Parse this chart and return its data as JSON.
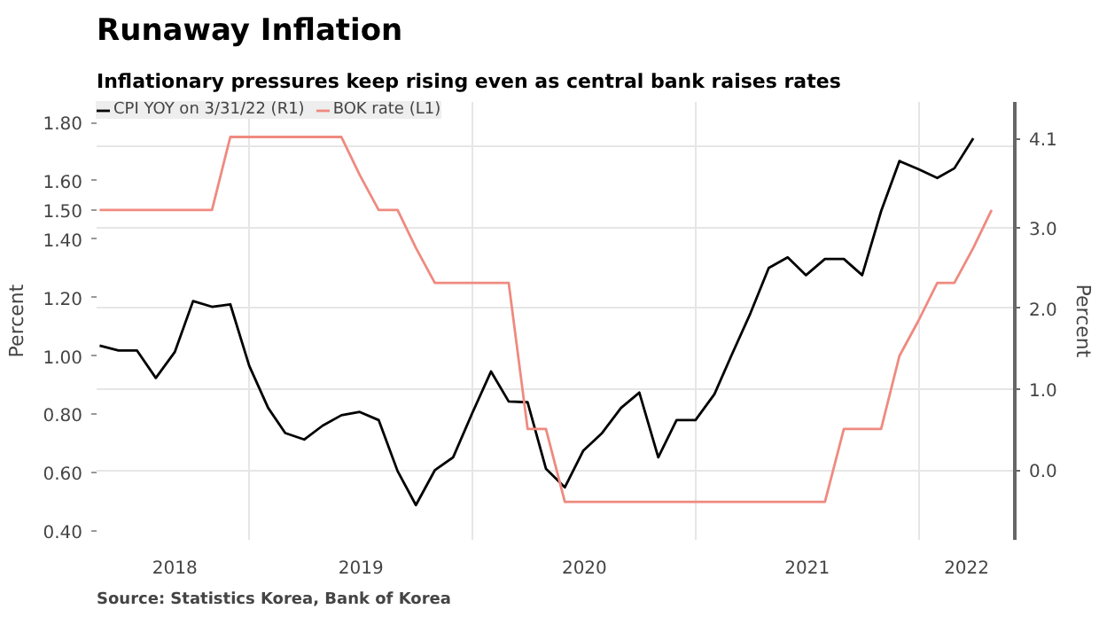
{
  "chart_data": {
    "type": "line",
    "title": "Runaway Inflation",
    "subtitle": "Inflationary pressures keep rising even as central bank raises rates",
    "ylabel": "Percent",
    "y2label": "Percent",
    "annotations": [
      "Source: Statistics Korea, Bank of Korea"
    ],
    "x": [
      "2018-04-30",
      "2018-05-31",
      "2018-06-30",
      "2018-07-31",
      "2018-08-31",
      "2018-09-30",
      "2018-10-31",
      "2018-11-30",
      "2018-12-31",
      "2019-01-31",
      "2019-02-28",
      "2019-03-31",
      "2019-04-30",
      "2019-05-31",
      "2019-06-30",
      "2019-07-31",
      "2019-08-31",
      "2019-09-30",
      "2019-10-31",
      "2019-11-30",
      "2019-12-31",
      "2020-01-31",
      "2020-02-29",
      "2020-03-31",
      "2020-04-30",
      "2020-05-31",
      "2020-06-30",
      "2020-07-31",
      "2020-08-31",
      "2020-09-30",
      "2020-10-31",
      "2020-11-30",
      "2020-12-31",
      "2021-01-31",
      "2021-02-28",
      "2021-03-31",
      "2021-04-30",
      "2021-05-31",
      "2021-06-30",
      "2021-07-31",
      "2021-08-31",
      "2021-09-30",
      "2021-10-31",
      "2021-11-30",
      "2021-12-31",
      "2022-01-31",
      "2022-02-28",
      "2022-03-31",
      "2022-04-30"
    ],
    "series": [
      {
        "name": "CPI YOY on 3/31/22 (R1)",
        "color": "#000000",
        "axis": "y2",
        "values": [
          1.54,
          1.48,
          1.48,
          1.14,
          1.46,
          2.09,
          2.02,
          2.05,
          1.29,
          0.77,
          0.46,
          0.38,
          0.55,
          0.68,
          0.72,
          0.62,
          -0.01,
          -0.43,
          0.0,
          0.16,
          0.7,
          1.22,
          0.85,
          0.84,
          0.02,
          -0.21,
          0.24,
          0.46,
          0.77,
          0.96,
          0.16,
          0.62,
          0.62,
          0.94,
          1.42,
          1.94,
          2.5,
          2.63,
          2.41,
          2.61,
          2.61,
          2.41,
          3.2,
          3.82,
          3.72,
          3.61,
          3.73,
          4.1,
          null
        ]
      },
      {
        "name": "BOK rate (L1)",
        "color": "#ef8a80",
        "values": [
          1.5,
          1.5,
          1.5,
          1.5,
          1.5,
          1.5,
          1.5,
          1.75,
          1.75,
          1.75,
          1.75,
          1.75,
          1.75,
          1.75,
          1.62,
          1.5,
          1.5,
          1.37,
          1.25,
          1.25,
          1.25,
          1.25,
          1.25,
          0.75,
          0.75,
          0.5,
          0.5,
          0.5,
          0.5,
          0.5,
          0.5,
          0.5,
          0.5,
          0.5,
          0.5,
          0.5,
          0.5,
          0.5,
          0.5,
          0.5,
          0.75,
          0.75,
          0.75,
          1.0,
          1.12,
          1.25,
          1.25,
          1.37,
          1.5
        ]
      }
    ],
    "xlim": [
      "2018-04-25",
      "2022-06-07"
    ],
    "xticks": [
      {
        "value": "2018-08-31",
        "label": "2018"
      },
      {
        "value": "2019-07-02",
        "label": "2019"
      },
      {
        "value": "2020-07-02",
        "label": "2020"
      },
      {
        "value": "2021-07-02",
        "label": "2021"
      },
      {
        "value": "2022-03-20",
        "label": "2022"
      },
      {
        "value": "2019-01-01",
        "label": null
      },
      {
        "value": "2020-01-01",
        "label": null
      },
      {
        "value": "2021-01-01",
        "label": null
      },
      {
        "value": "2022-01-01",
        "label": null
      }
    ],
    "ylim": [
      0.37,
      1.87
    ],
    "yticks": [
      {
        "value": 0.4,
        "label": "0.40"
      },
      {
        "value": 0.6,
        "label": "0.60"
      },
      {
        "value": 0.8,
        "label": "0.80"
      },
      {
        "value": 1.0,
        "label": "1.00"
      },
      {
        "value": 1.2,
        "label": "1.20"
      },
      {
        "value": 1.4,
        "label": "1.40"
      },
      {
        "value": 1.5,
        "label": "1.50"
      },
      {
        "value": 1.6,
        "label": "1.60"
      },
      {
        "value": 1.8,
        "label": "1.80"
      }
    ],
    "y2lim": [
      -0.86,
      4.55
    ],
    "y2ticks": [
      {
        "value": 0.0,
        "label": "0.0"
      },
      {
        "value": 1.0,
        "label": "1.0"
      },
      {
        "value": 2.0,
        "label": "2.0"
      },
      {
        "value": 3.0,
        "label": "3.0"
      },
      4.1
    ],
    "grid": true,
    "legend": "top left"
  }
}
